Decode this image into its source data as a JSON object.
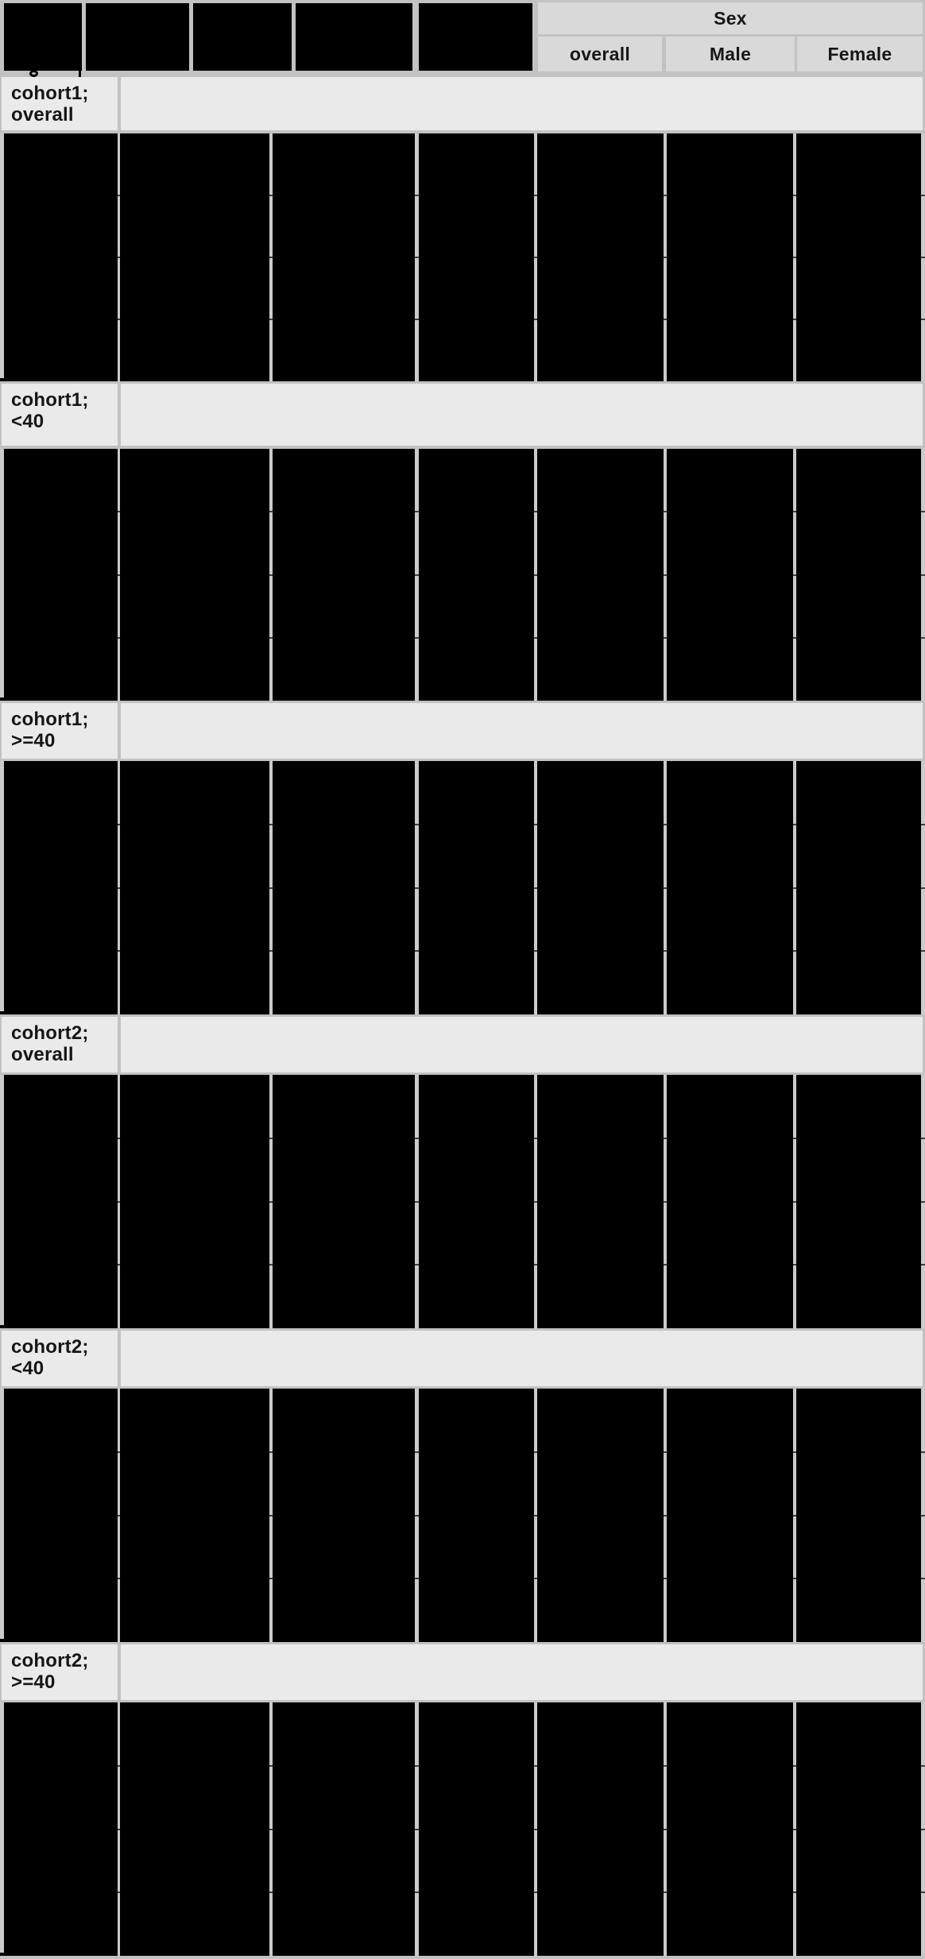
{
  "table": {
    "column_group_label": "Sex",
    "sub_columns": [
      "overall",
      "Male",
      "Female"
    ],
    "redacted_header_columns": 5,
    "plot_panels_per_row": 7,
    "sections": [
      {
        "label_line1": "cohort1;",
        "label_line2": "overall"
      },
      {
        "label_line1": "cohort1;",
        "label_line2": "<40"
      },
      {
        "label_line1": "cohort1;",
        "label_line2": ">=40"
      },
      {
        "label_line1": "cohort2;",
        "label_line2": "overall"
      },
      {
        "label_line1": "cohort2;",
        "label_line2": "<40"
      },
      {
        "label_line1": "cohort2;",
        "label_line2": ">=40"
      }
    ]
  },
  "colors": {
    "background": "#c2c2c2",
    "header_cell": "#d9d9d9",
    "band_cell": "#eaeaea",
    "redaction": "#000000",
    "text": "#161616",
    "tick": "#3f3f3f"
  }
}
